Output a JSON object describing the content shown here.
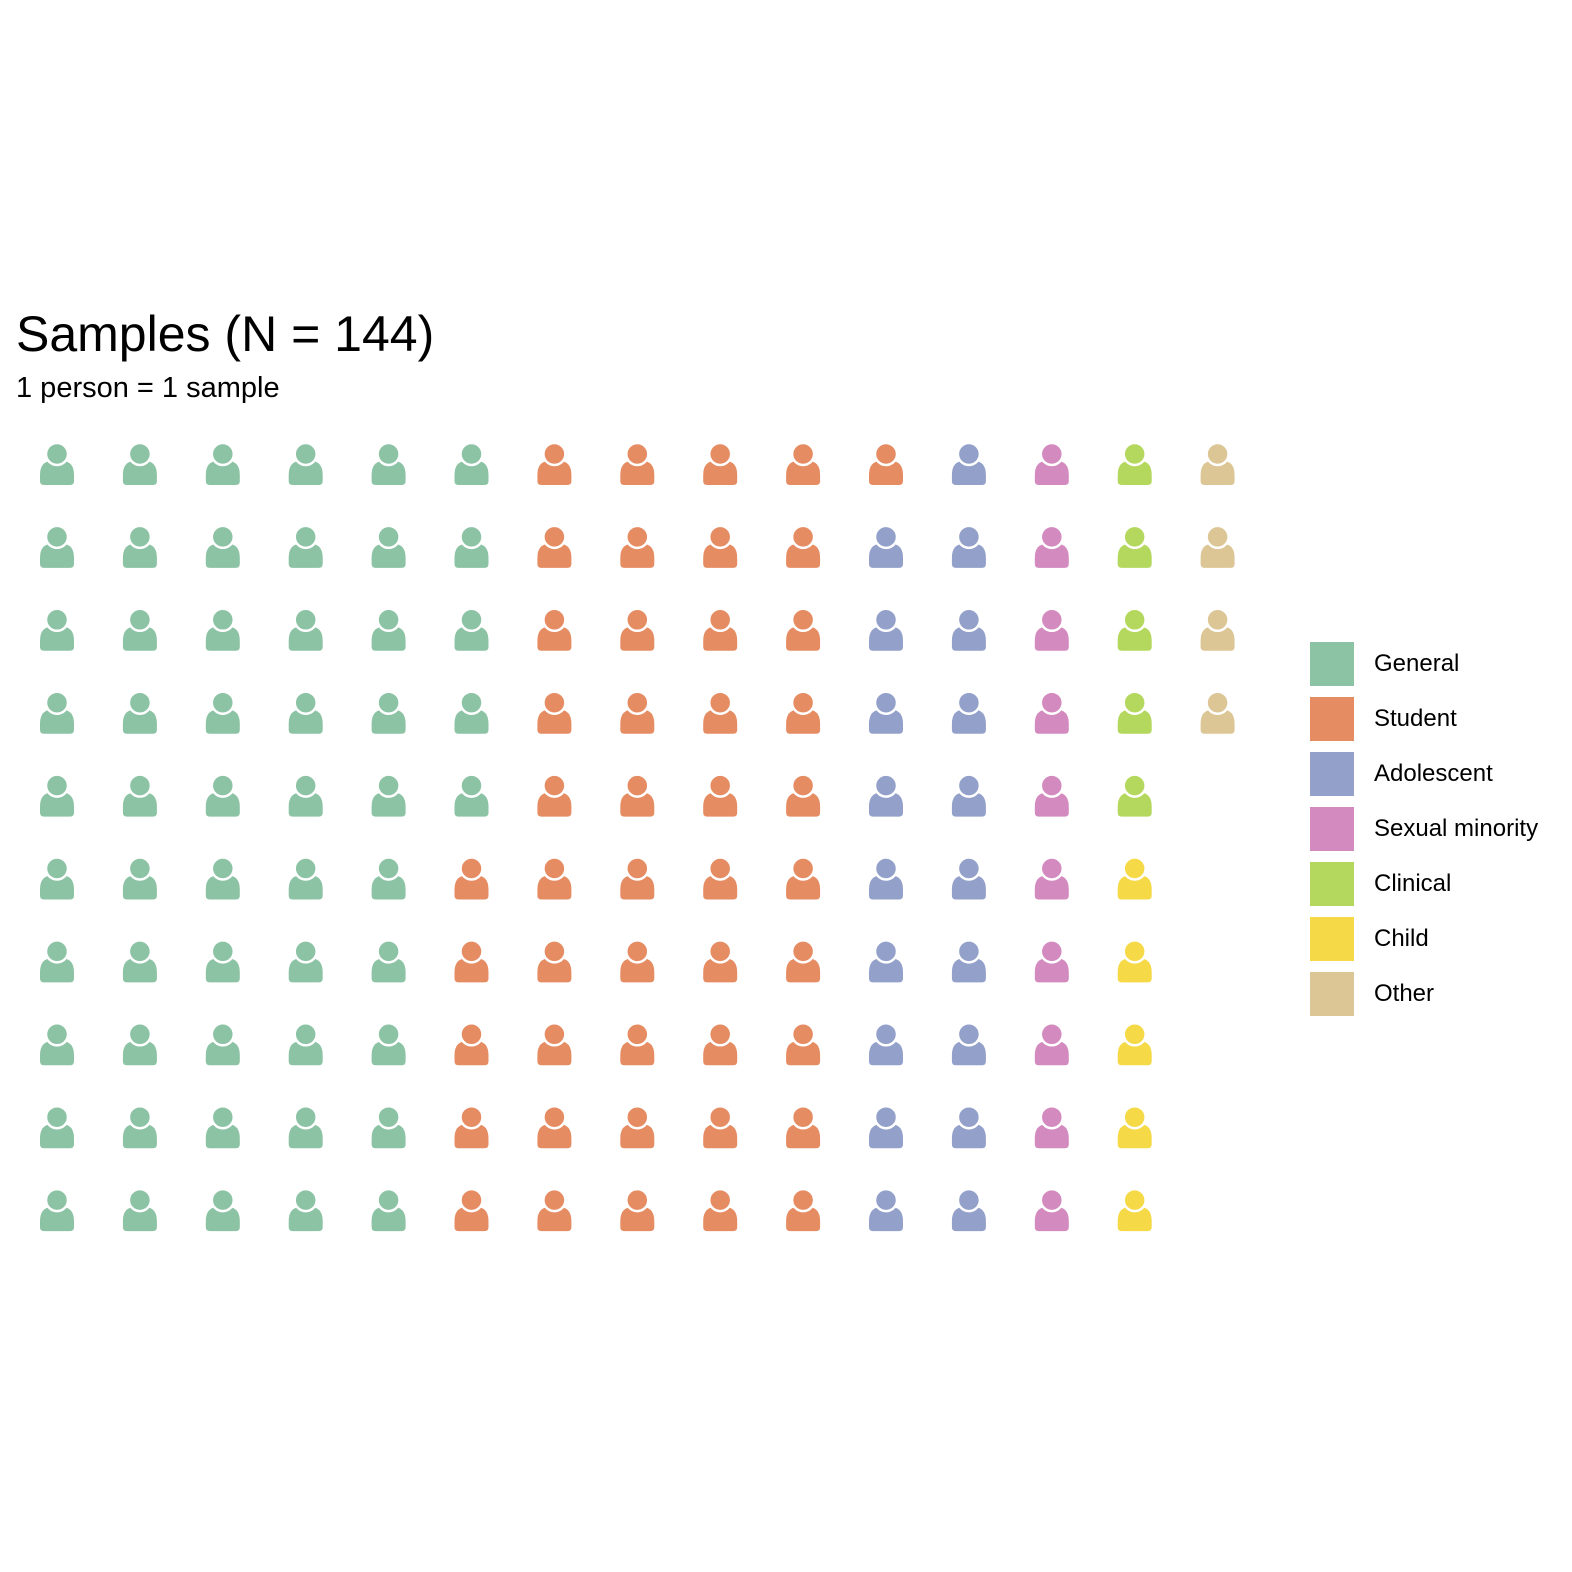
{
  "chart_data": {
    "type": "pictogram",
    "title": "Samples (N = 144)",
    "subtitle": "1 person = 1 sample",
    "unit": "1 person = 1 sample",
    "rows": 10,
    "fill_order": "column-major, top to bottom",
    "categories": [
      "General",
      "Student",
      "Adolescent",
      "Sexual minority",
      "Clinical",
      "Child",
      "Other"
    ],
    "values": [
      55,
      46,
      19,
      10,
      5,
      5,
      4
    ],
    "colors": [
      "#8CC3A5",
      "#E68C63",
      "#92A0CA",
      "#D38ABF",
      "#B4D85D",
      "#F5D947",
      "#DDC695"
    ],
    "total": 144,
    "legend_position": "right"
  }
}
